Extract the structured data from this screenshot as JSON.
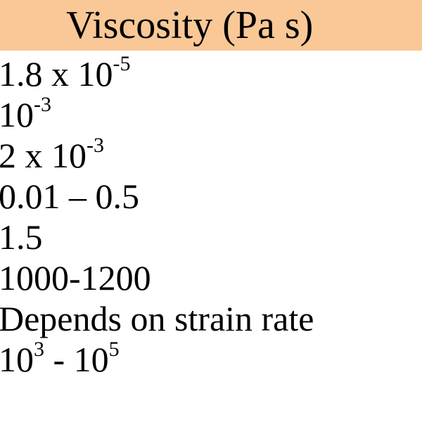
{
  "header": {
    "title": "Viscosity (Pa s)",
    "background": "#f9c896"
  },
  "rows": [
    {
      "base": "1.8 x 10",
      "exp": "-5",
      "suffix": ""
    },
    {
      "base": "10",
      "exp": "-3",
      "suffix": ""
    },
    {
      "base": "2 x 10",
      "exp": "-3",
      "suffix": ""
    },
    {
      "base": "0.01 – 0.5",
      "exp": "",
      "suffix": ""
    },
    {
      "base": "1.5",
      "exp": "",
      "suffix": ""
    },
    {
      "base": "1000-1200",
      "exp": "",
      "suffix": ""
    },
    {
      "base": "Depends on strain rate",
      "exp": "",
      "suffix": ""
    },
    {
      "base": "10",
      "exp": "3",
      "suffix": " - 10",
      "exp2": "5"
    }
  ]
}
